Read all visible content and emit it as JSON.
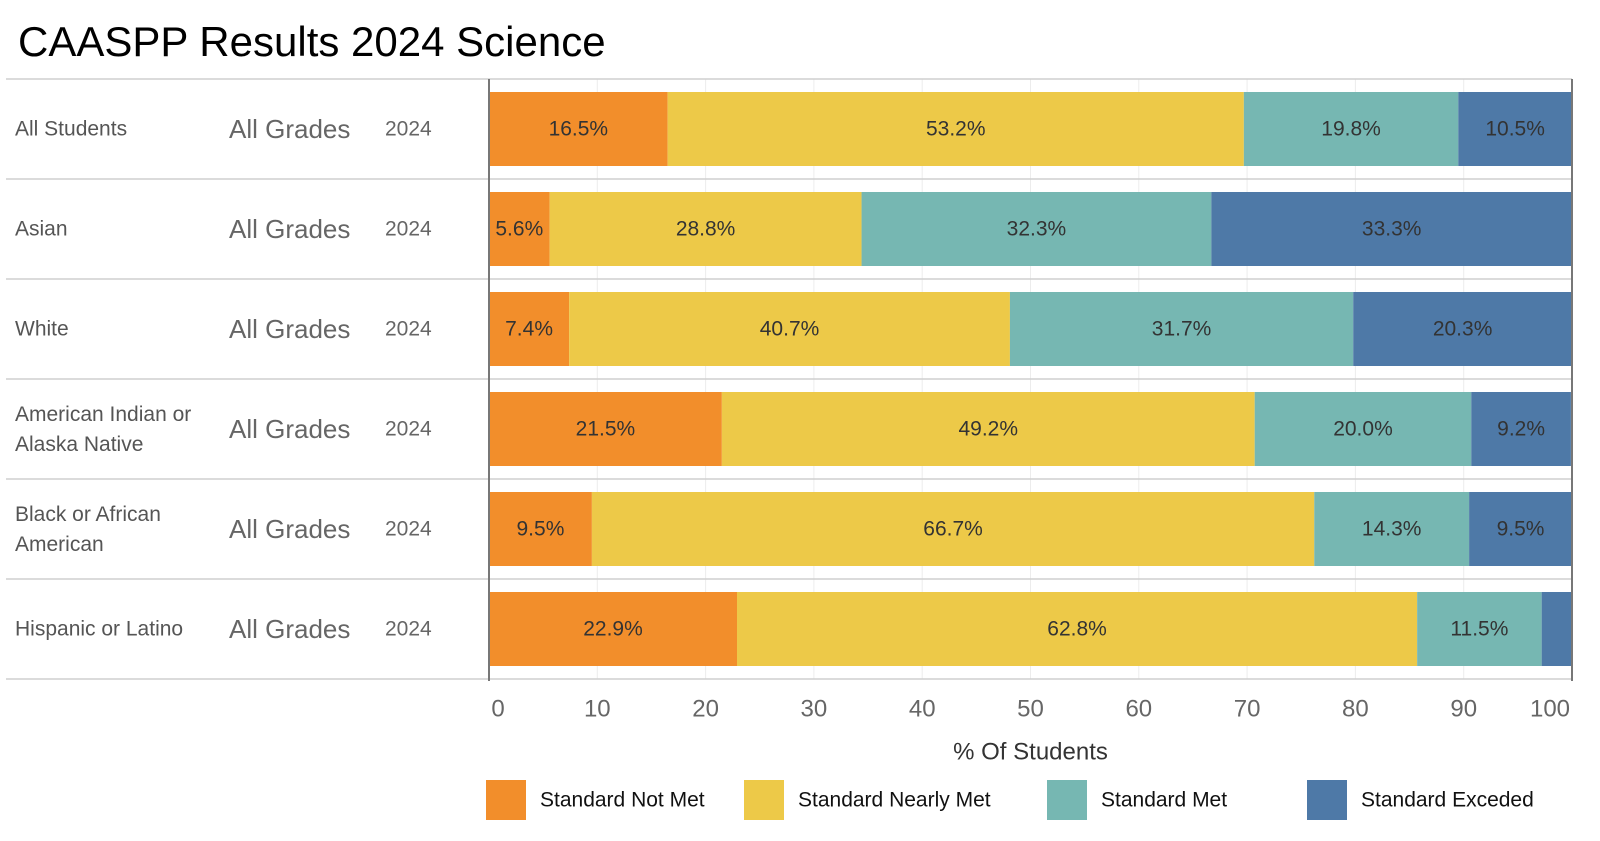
{
  "chart_data": {
    "type": "bar",
    "orientation": "horizontal",
    "stacked": true,
    "title": "CAASPP Results 2024 Science",
    "xlabel": "% Of Students",
    "xlim": [
      0,
      100
    ],
    "xticks": [
      0,
      10,
      20,
      30,
      40,
      50,
      60,
      70,
      80,
      90,
      100
    ],
    "grid": true,
    "legend_position": "bottom",
    "rows": [
      {
        "group": "All Students",
        "grades": "All Grades",
        "year": "2024"
      },
      {
        "group": "Asian",
        "grades": "All Grades",
        "year": "2024"
      },
      {
        "group": "White",
        "grades": "All Grades",
        "year": "2024"
      },
      {
        "group": "American Indian or Alaska Native",
        "grades": "All Grades",
        "year": "2024"
      },
      {
        "group": "Black or African American",
        "grades": "All Grades",
        "year": "2024"
      },
      {
        "group": "Hispanic or Latino",
        "grades": "All Grades",
        "year": "2024"
      }
    ],
    "series": [
      {
        "name": "Standard Not Met",
        "color": "#F28E2B",
        "values": [
          16.5,
          5.6,
          7.4,
          21.5,
          9.5,
          22.9
        ],
        "labels": [
          "16.5%",
          "5.6%",
          "7.4%",
          "21.5%",
          "9.5%",
          "22.9%"
        ]
      },
      {
        "name": "Standard Nearly Met",
        "color": "#EDC948",
        "values": [
          53.2,
          28.8,
          40.7,
          49.2,
          66.7,
          62.8
        ],
        "labels": [
          "53.2%",
          "28.8%",
          "40.7%",
          "49.2%",
          "66.7%",
          "62.8%"
        ]
      },
      {
        "name": "Standard Met",
        "color": "#76B7B2",
        "values": [
          19.8,
          32.3,
          31.7,
          20.0,
          14.3,
          11.5
        ],
        "labels": [
          "19.8%",
          "32.3%",
          "31.7%",
          "20.0%",
          "14.3%",
          "11.5%"
        ]
      },
      {
        "name": "Standard Exceded",
        "color": "#4E79A7",
        "values": [
          10.5,
          33.3,
          20.3,
          9.2,
          9.5,
          2.8
        ],
        "labels": [
          "10.5%",
          "33.3%",
          "20.3%",
          "9.2%",
          "9.5%",
          ""
        ]
      }
    ]
  }
}
